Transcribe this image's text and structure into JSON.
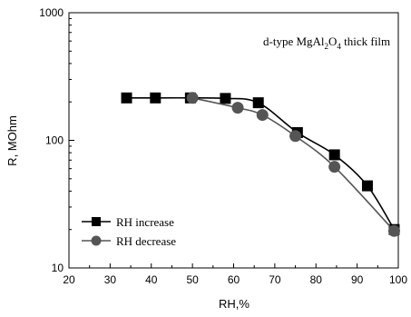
{
  "chart_data": {
    "type": "line",
    "title": "d-type MgAl2O4 thick film",
    "title_parts": {
      "prefix": "d-type MgAl",
      "sub1": "2",
      "mid": "O",
      "sub2": "4",
      "suffix": " thick film"
    },
    "xlabel": "RH,%",
    "ylabel": "R, MOhm",
    "xlim": [
      20,
      100
    ],
    "ylim": [
      10,
      1000
    ],
    "yscale": "log",
    "x_ticks": [
      20,
      30,
      40,
      50,
      60,
      70,
      80,
      90,
      100
    ],
    "y_ticks": [
      10,
      100,
      1000
    ],
    "grid": false,
    "legend_position": "bottom-left",
    "series": [
      {
        "name": "RH increase",
        "marker": "square",
        "color": "#000000",
        "x": [
          34,
          41,
          49.5,
          58,
          66,
          75.5,
          84.5,
          92.5,
          99
        ],
        "y": [
          215,
          215,
          215,
          213,
          197,
          115,
          77,
          44,
          20
        ]
      },
      {
        "name": "RH decrease",
        "marker": "circle",
        "color": "#555555",
        "x": [
          50,
          61,
          67,
          75,
          84.5,
          99
        ],
        "y": [
          215,
          180,
          158,
          108,
          62,
          19.5
        ]
      }
    ]
  }
}
